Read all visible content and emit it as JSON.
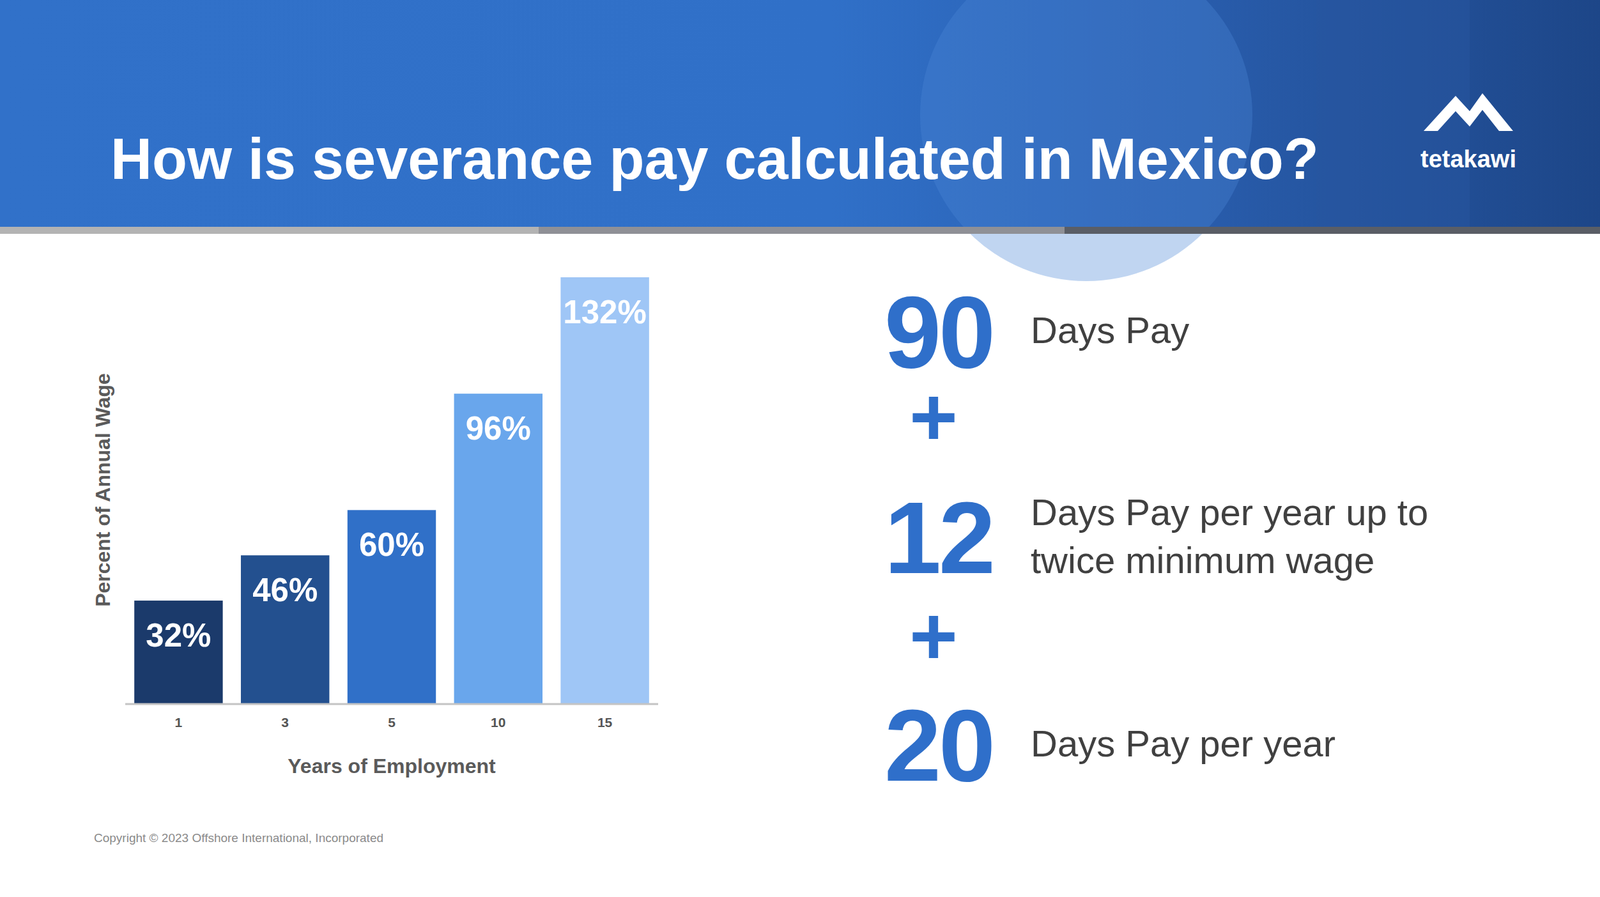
{
  "header": {
    "title": "How is severance pay calculated in Mexico?",
    "logo": "tetakawi"
  },
  "chart_data": {
    "type": "bar",
    "categories": [
      "1",
      "3",
      "5",
      "10",
      "15"
    ],
    "values": [
      32,
      46,
      60,
      96,
      132
    ],
    "value_labels": [
      "32%",
      "46%",
      "60%",
      "96%",
      "132%"
    ],
    "data_labels": true,
    "colors": [
      "#1b3a6b",
      "#23508f",
      "#3070c8",
      "#69a6ec",
      "#9fc6f6"
    ],
    "x_label": "Years of Employment",
    "y_label": "Percent of Annual Wage",
    "ylim": [
      0,
      132
    ],
    "tick_labels": "x",
    "grid": false
  },
  "formula": {
    "operator": "+",
    "terms": [
      {
        "number": "90",
        "text": "Days Pay"
      },
      {
        "number": "12",
        "text": "Days Pay per year up to twice minimum wage"
      },
      {
        "number": "20",
        "text": "Days Pay per year"
      }
    ]
  },
  "footer": {
    "copyright": "Copyright © 2023 Offshore International, Incorporated"
  }
}
